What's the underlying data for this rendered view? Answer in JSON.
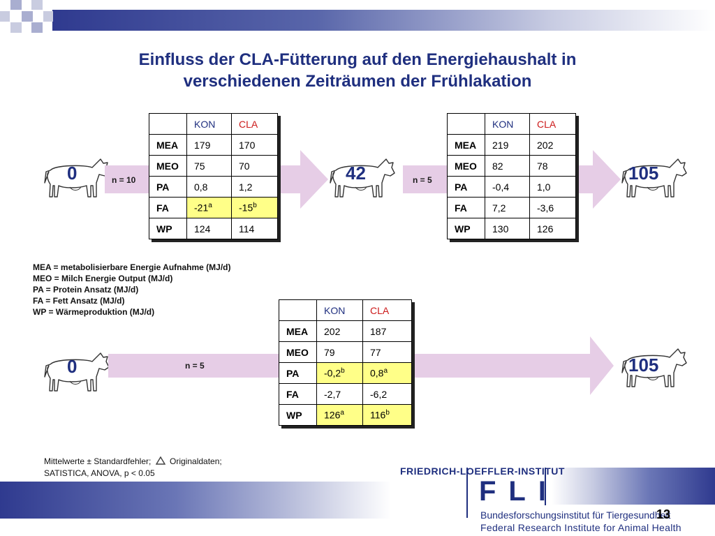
{
  "title": {
    "line1": "Einfluss der CLA-Fütterung auf den Energiehaushalt in",
    "line2": "verschiedenen Zeiträumen der Frühlakation"
  },
  "colors": {
    "title": "#1f2f7f",
    "cla_header": "#cc1a1a",
    "highlight": "#ffff88",
    "arrow": "#e6cde6"
  },
  "periods": {
    "p1": {
      "start": "0",
      "end": "42",
      "n": "n = 10"
    },
    "p2": {
      "start": "42",
      "end": "105",
      "n": "n = 5"
    },
    "p3": {
      "start": "0",
      "end": "105",
      "n": "n = 5"
    }
  },
  "tables": {
    "t1": {
      "headers": [
        "",
        "KON",
        "CLA"
      ],
      "rows": [
        {
          "label": "MEA",
          "kon": "179",
          "cla": "170"
        },
        {
          "label": "MEO",
          "kon": "75",
          "cla": "70"
        },
        {
          "label": "PA",
          "kon": "0,8",
          "cla": "1,2"
        },
        {
          "label": "FA",
          "kon": "-21",
          "kon_sup": "a",
          "cla": "-15",
          "cla_sup": "b",
          "highlight": true
        },
        {
          "label": "WP",
          "kon": "124",
          "cla": "114"
        }
      ]
    },
    "t2": {
      "headers": [
        "",
        "KON",
        "CLA"
      ],
      "rows": [
        {
          "label": "MEA",
          "kon": "219",
          "cla": "202"
        },
        {
          "label": "MEO",
          "kon": "82",
          "cla": "78"
        },
        {
          "label": "PA",
          "kon": "-0,4",
          "cla": "1,0"
        },
        {
          "label": "FA",
          "kon": "7,2",
          "cla": "-3,6"
        },
        {
          "label": "WP",
          "kon": "130",
          "cla": "126"
        }
      ]
    },
    "t3": {
      "headers": [
        "",
        "KON",
        "CLA"
      ],
      "rows": [
        {
          "label": "MEA",
          "kon": "202",
          "cla": "187"
        },
        {
          "label": "MEO",
          "kon": "79",
          "cla": "77"
        },
        {
          "label": "PA",
          "kon": "-0,2",
          "kon_sup": "b",
          "cla": "0,8",
          "cla_sup": "a",
          "highlight": true
        },
        {
          "label": "FA",
          "kon": "-2,7",
          "cla": "-6,2"
        },
        {
          "label": "WP",
          "kon": "126",
          "kon_sup": "a",
          "cla": "116",
          "cla_sup": "b",
          "highlight": true
        }
      ]
    }
  },
  "legend": [
    "MEA = metabolisierbare Energie Aufnahme (MJ/d)",
    "MEO = Milch Energie Output (MJ/d)",
    "PA = Protein Ansatz (MJ/d)",
    "FA = Fett Ansatz (MJ/d)",
    "WP = Wärmeproduktion (MJ/d)"
  ],
  "note": {
    "line1_a": "Mittelwerte ± Standardfehler;",
    "line1_b": "Originaldaten;",
    "line2": "SATISTICA, ANOVA, p < 0.05",
    "icon": "triangle-icon"
  },
  "logo": {
    "institute": "FRIEDRICH-LOEFFLER-INSTITUT",
    "mark": "FLI",
    "sub1": "Bundesforschungsinstitut für Tiergesundheit",
    "sub2": "Federal Research Institute for Animal Health"
  },
  "page_number": "13"
}
